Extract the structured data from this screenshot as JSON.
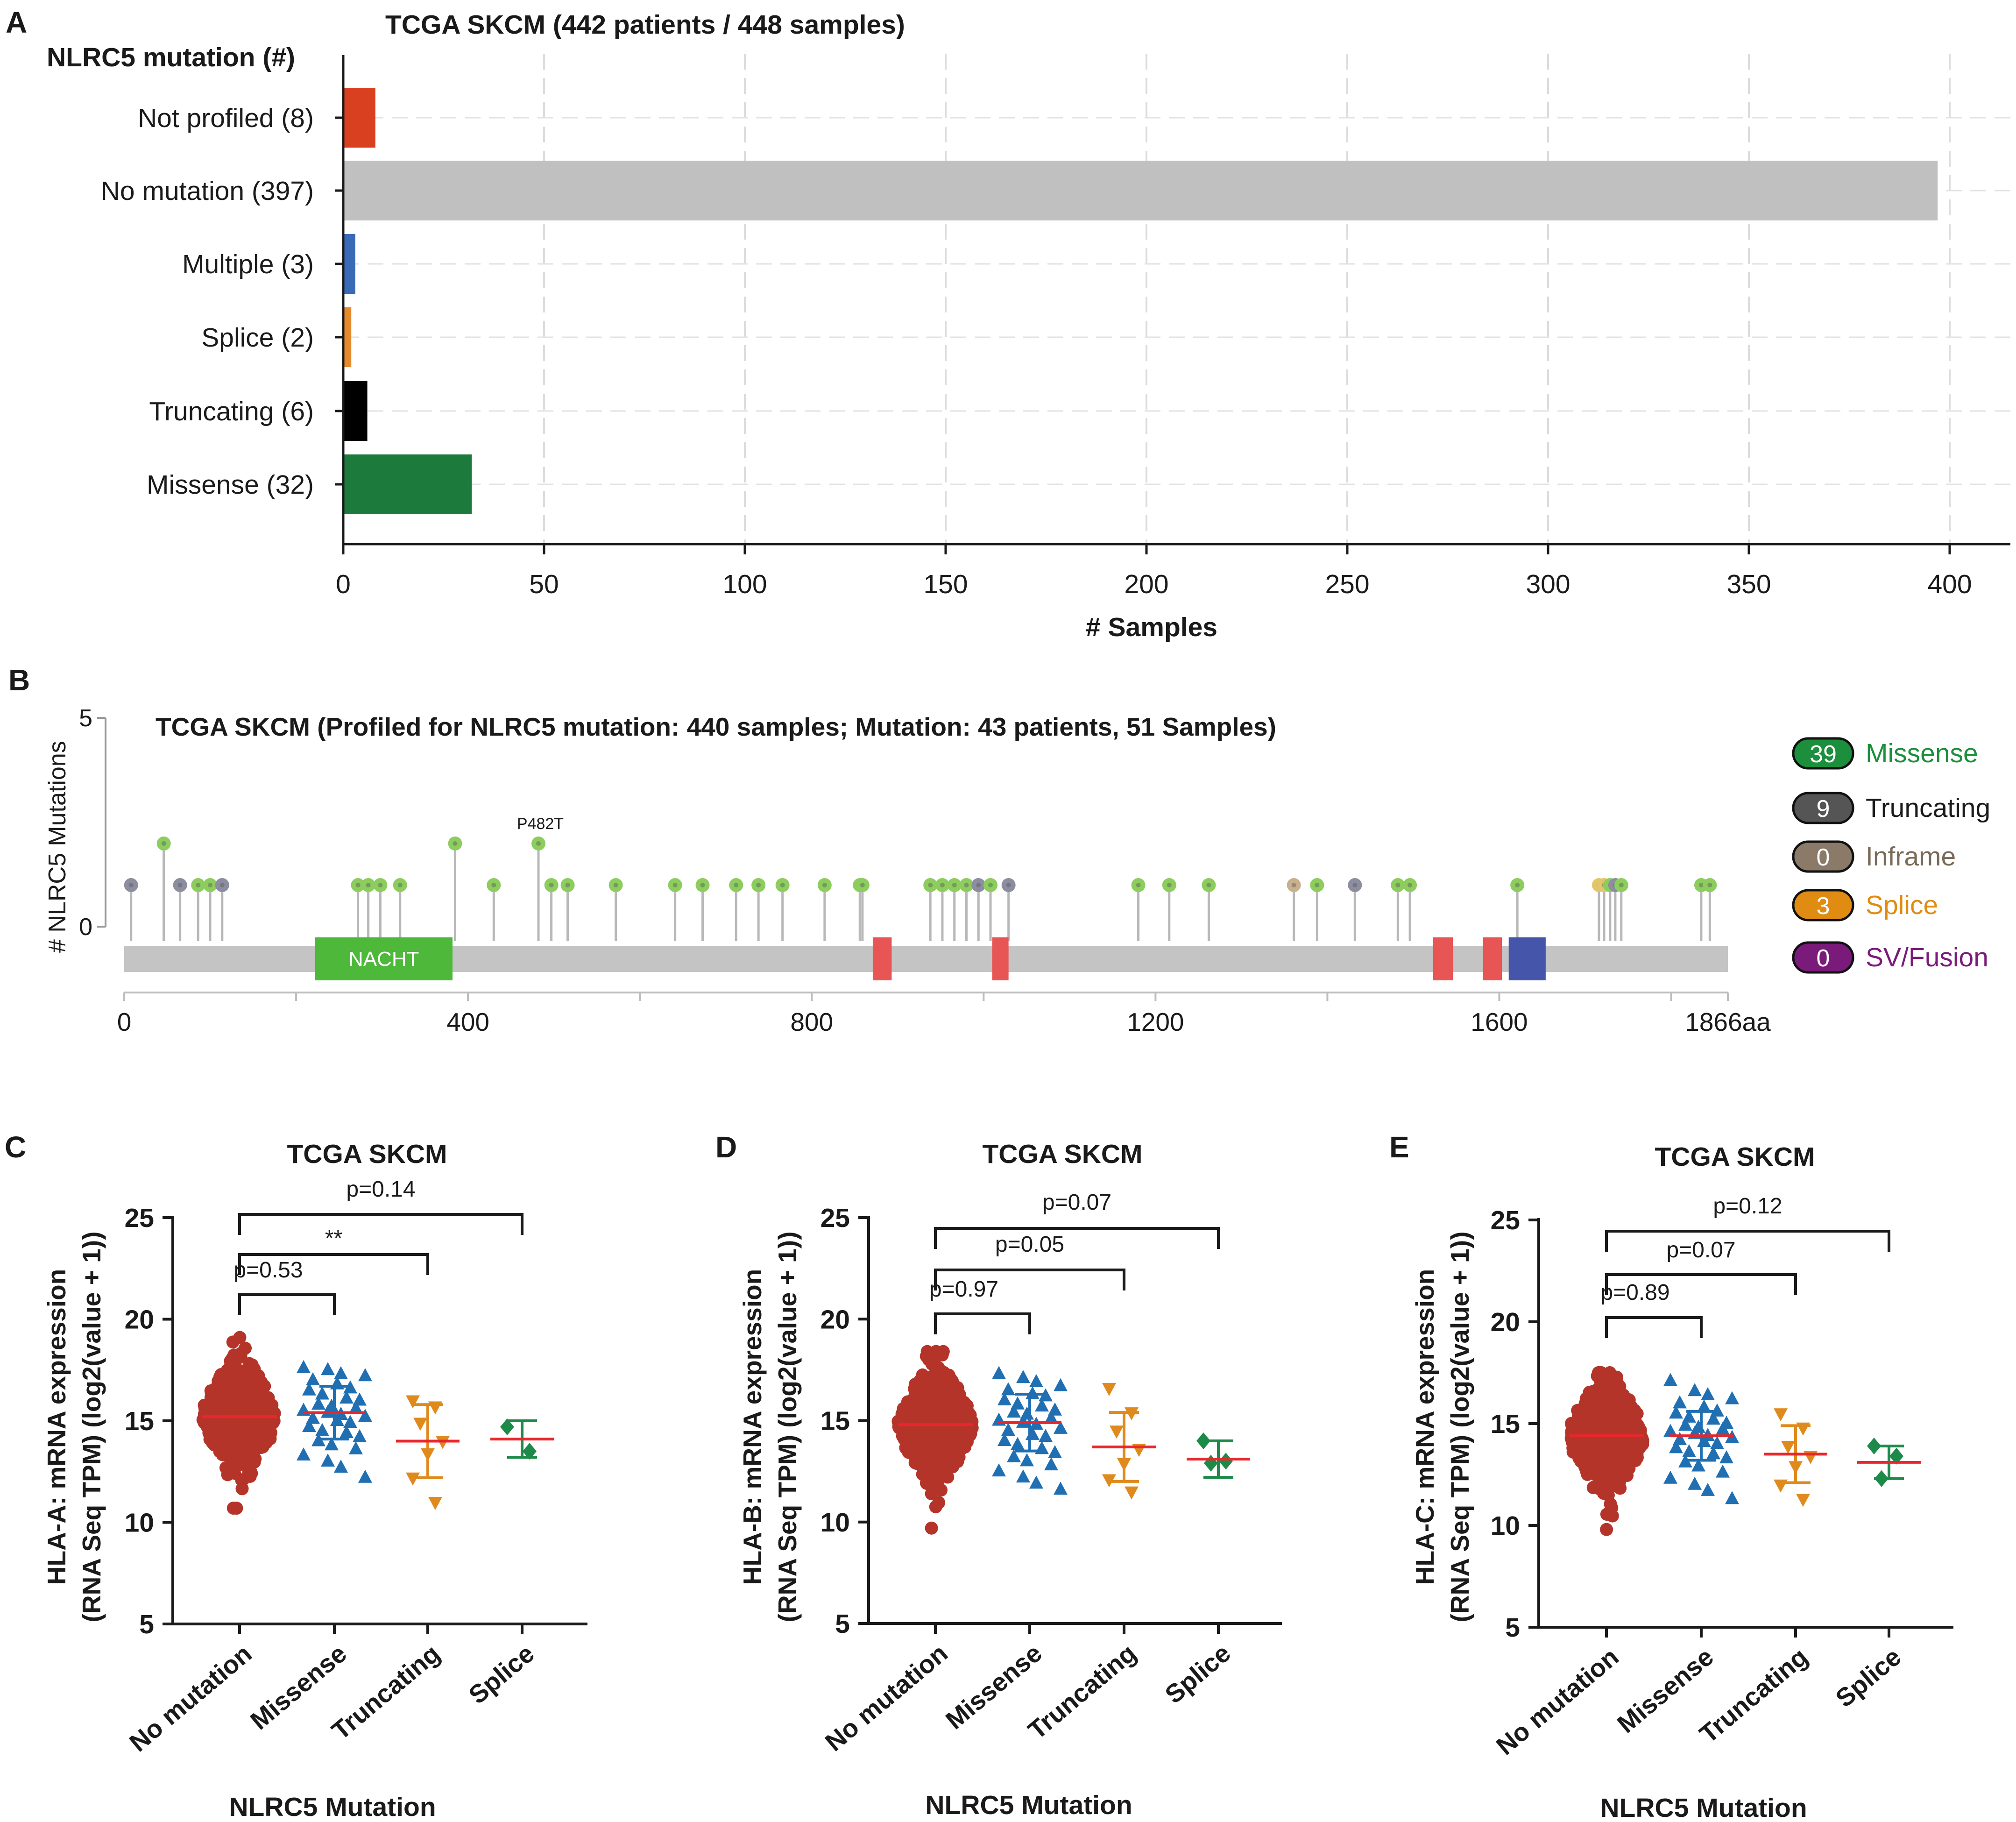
{
  "panelA": {
    "letter": "A",
    "title": "TCGA SKCM (442 patients / 448 samples)",
    "ylabel": "NLRC5 mutation (#)",
    "xlabel": "# Samples",
    "chart_data": {
      "type": "bar",
      "orientation": "horizontal",
      "title": "TCGA SKCM (442 patients / 448 samples)",
      "xlabel": "# Samples",
      "ylabel": "NLRC5 mutation (#)",
      "xlim": [
        0,
        410
      ],
      "xticks": [
        0,
        50,
        100,
        150,
        200,
        250,
        300,
        350,
        400
      ],
      "grid": "dashed-vertical",
      "categories": [
        "Not profiled (8)",
        "No mutation (397)",
        "Multiple (3)",
        "Splice (2)",
        "Truncating (6)",
        "Missense (32)"
      ],
      "values": [
        8,
        397,
        3,
        2,
        6,
        32
      ],
      "colors": [
        "#d9401f",
        "#c0c0c0",
        "#3a6ab5",
        "#e58a2e",
        "#000000",
        "#1b7a3c"
      ]
    }
  },
  "panelB": {
    "letter": "B",
    "title": "TCGA SKCM (Profiled for NLRC5 mutation: 440 samples; Mutation: 43 patients, 51 Samples)",
    "ylabel": "# NLRC5 Mutations",
    "domain_label": "NACHT",
    "hotspot_label": "P482T",
    "chart_data": {
      "type": "lollipop",
      "protein_length": 1866,
      "ylim": [
        0,
        5
      ],
      "yticks": [
        0,
        5
      ],
      "xtick_labels": [
        "0",
        "400",
        "800",
        "1200",
        "1600",
        "1866aa"
      ],
      "xtick_values": [
        0,
        400,
        800,
        1200,
        1600,
        1866
      ],
      "domains": [
        {
          "name": "NACHT",
          "start": 222,
          "end": 382,
          "color": "#4db83a"
        },
        {
          "name": "",
          "start": 871,
          "end": 893,
          "color": "#e85555"
        },
        {
          "name": "",
          "start": 1010,
          "end": 1029,
          "color": "#e85555"
        },
        {
          "name": "",
          "start": 1523,
          "end": 1546,
          "color": "#e85555"
        },
        {
          "name": "",
          "start": 1581,
          "end": 1603,
          "color": "#e85555"
        },
        {
          "name": "",
          "start": 1611,
          "end": 1654,
          "color": "#4455aa"
        }
      ],
      "mutations": [
        {
          "pos": 8,
          "count": 1,
          "type": "truncating"
        },
        {
          "pos": 46,
          "count": 2,
          "type": "missense"
        },
        {
          "pos": 65,
          "count": 1,
          "type": "truncating"
        },
        {
          "pos": 86,
          "count": 1,
          "type": "missense"
        },
        {
          "pos": 100,
          "count": 1,
          "type": "missense"
        },
        {
          "pos": 114,
          "count": 1,
          "type": "truncating"
        },
        {
          "pos": 272,
          "count": 1,
          "type": "missense"
        },
        {
          "pos": 284,
          "count": 1,
          "type": "missense"
        },
        {
          "pos": 298,
          "count": 1,
          "type": "missense"
        },
        {
          "pos": 321,
          "count": 1,
          "type": "missense"
        },
        {
          "pos": 385,
          "count": 2,
          "type": "missense"
        },
        {
          "pos": 430,
          "count": 1,
          "type": "missense"
        },
        {
          "pos": 482,
          "count": 2,
          "type": "missense"
        },
        {
          "pos": 497,
          "count": 1,
          "type": "missense"
        },
        {
          "pos": 516,
          "count": 1,
          "type": "missense"
        },
        {
          "pos": 572,
          "count": 1,
          "type": "missense"
        },
        {
          "pos": 641,
          "count": 1,
          "type": "missense"
        },
        {
          "pos": 673,
          "count": 1,
          "type": "missense"
        },
        {
          "pos": 712,
          "count": 1,
          "type": "missense"
        },
        {
          "pos": 738,
          "count": 1,
          "type": "missense"
        },
        {
          "pos": 766,
          "count": 1,
          "type": "missense"
        },
        {
          "pos": 815,
          "count": 1,
          "type": "missense"
        },
        {
          "pos": 856,
          "count": 1,
          "type": "missense"
        },
        {
          "pos": 859,
          "count": 1,
          "type": "missense"
        },
        {
          "pos": 938,
          "count": 1,
          "type": "missense"
        },
        {
          "pos": 952,
          "count": 1,
          "type": "missense"
        },
        {
          "pos": 966,
          "count": 1,
          "type": "missense"
        },
        {
          "pos": 980,
          "count": 1,
          "type": "missense"
        },
        {
          "pos": 994,
          "count": 1,
          "type": "truncating"
        },
        {
          "pos": 1008,
          "count": 1,
          "type": "missense"
        },
        {
          "pos": 1029,
          "count": 1,
          "type": "truncating"
        },
        {
          "pos": 1180,
          "count": 1,
          "type": "missense"
        },
        {
          "pos": 1216,
          "count": 1,
          "type": "missense"
        },
        {
          "pos": 1262,
          "count": 1,
          "type": "missense"
        },
        {
          "pos": 1361,
          "count": 1,
          "type": "inframe"
        },
        {
          "pos": 1388,
          "count": 1,
          "type": "missense"
        },
        {
          "pos": 1432,
          "count": 1,
          "type": "truncating"
        },
        {
          "pos": 1482,
          "count": 1,
          "type": "missense"
        },
        {
          "pos": 1496,
          "count": 1,
          "type": "missense"
        },
        {
          "pos": 1621,
          "count": 1,
          "type": "missense"
        },
        {
          "pos": 1716,
          "count": 1,
          "type": "splice"
        },
        {
          "pos": 1722,
          "count": 1,
          "type": "splice"
        },
        {
          "pos": 1729,
          "count": 1,
          "type": "missense"
        },
        {
          "pos": 1735,
          "count": 1,
          "type": "truncating"
        },
        {
          "pos": 1742,
          "count": 1,
          "type": "missense"
        },
        {
          "pos": 1835,
          "count": 1,
          "type": "missense"
        },
        {
          "pos": 1845,
          "count": 1,
          "type": "missense"
        }
      ],
      "legend": [
        {
          "count": "39",
          "label": "Missense",
          "badge": "#1b8f3c",
          "text": "#1b8f3c"
        },
        {
          "count": "9",
          "label": "Truncating",
          "badge": "#555555",
          "text": "#1a1a1a"
        },
        {
          "count": "0",
          "label": "Inframe",
          "badge": "#8b7a68",
          "text": "#7a6a58"
        },
        {
          "count": "3",
          "label": "Splice",
          "badge": "#e08c12",
          "text": "#e08c12"
        },
        {
          "count": "0",
          "label": "SV/Fusion",
          "badge": "#7a1a7a",
          "text": "#7a1a7a"
        }
      ],
      "type_colors": {
        "missense": "#8ccd5e",
        "truncating": "#8d8da0",
        "inframe": "#c9b08c",
        "splice": "#e2c66a"
      }
    }
  },
  "scatterPanels": [
    {
      "letter": "C",
      "title": "TCGA SKCM",
      "ylabel1": "HLA-A: mRNA expression",
      "ylabel2": "(RNA Seq TPM) (log2(value + 1))",
      "xlabel": "NLRC5 Mutation",
      "chart_data": {
        "type": "scatter",
        "categories": [
          "No mutation",
          "Missense",
          "Truncating",
          "Splice"
        ],
        "colors": [
          "#b5342a",
          "#1f6fb2",
          "#e08a1e",
          "#1e8a4a"
        ],
        "ylim": [
          5,
          25
        ],
        "yticks": [
          5,
          10,
          15,
          20,
          25
        ],
        "groups": [
          {
            "name": "No mutation",
            "n": 397,
            "mean": 15.2,
            "min": 10.7,
            "max": 19.1
          },
          {
            "name": "Missense",
            "n": 32,
            "mean": 15.4,
            "sd": 1.3,
            "min": 12.2,
            "max": 17.6,
            "points": [
              17.6,
              17.5,
              17.3,
              17.2,
              17.0,
              16.8,
              16.6,
              16.5,
              16.3,
              16.1,
              16.0,
              15.8,
              15.7,
              15.6,
              15.5,
              15.4,
              15.3,
              15.2,
              15.1,
              15.0,
              14.9,
              14.7,
              14.5,
              14.4,
              14.2,
              14.0,
              13.8,
              13.6,
              13.3,
              13.0,
              12.7,
              12.2
            ]
          },
          {
            "name": "Truncating",
            "n": 7,
            "mean": 14.0,
            "sd": 1.8,
            "points": [
              16.0,
              15.7,
              14.9,
              14.0,
              13.4,
              12.2,
              11.0
            ]
          },
          {
            "name": "Splice",
            "n": 2,
            "mean": 14.1,
            "sd": 0.9,
            "points": [
              14.7,
              13.5
            ]
          }
        ],
        "comparisons": [
          {
            "from": "No mutation",
            "to": "Missense",
            "label": "p=0.53"
          },
          {
            "from": "No mutation",
            "to": "Truncating",
            "label": "**"
          },
          {
            "from": "No mutation",
            "to": "Splice",
            "label": "p=0.14"
          }
        ]
      }
    },
    {
      "letter": "D",
      "title": "TCGA SKCM",
      "ylabel1": "HLA-B: mRNA expression",
      "ylabel2": "(RNA Seq TPM) (log2(value + 1))",
      "xlabel": "NLRC5 Mutation",
      "chart_data": {
        "type": "scatter",
        "categories": [
          "No mutation",
          "Missense",
          "Truncating",
          "Splice"
        ],
        "colors": [
          "#b5342a",
          "#1f6fb2",
          "#e08a1e",
          "#1e8a4a"
        ],
        "ylim": [
          5,
          25
        ],
        "yticks": [
          5,
          10,
          15,
          20,
          25
        ],
        "groups": [
          {
            "name": "No mutation",
            "n": 397,
            "mean": 14.8,
            "min": 9.7,
            "max": 18.4
          },
          {
            "name": "Missense",
            "n": 32,
            "mean": 14.9,
            "sd": 1.4,
            "min": 11.6,
            "max": 17.3,
            "points": [
              17.3,
              17.1,
              16.9,
              16.7,
              16.5,
              16.3,
              16.2,
              16.0,
              15.8,
              15.7,
              15.5,
              15.4,
              15.3,
              15.1,
              15.0,
              14.9,
              14.8,
              14.6,
              14.5,
              14.3,
              14.2,
              14.0,
              13.8,
              13.6,
              13.4,
              13.2,
              13.0,
              12.8,
              12.5,
              12.2,
              11.9,
              11.6
            ]
          },
          {
            "name": "Truncating",
            "n": 7,
            "mean": 13.7,
            "sd": 1.7,
            "points": [
              16.6,
              15.4,
              14.5,
              13.6,
              12.9,
              12.1,
              11.5
            ]
          },
          {
            "name": "Splice",
            "n": 3,
            "mean": 13.1,
            "sd": 0.9,
            "points": [
              14.0,
              13.0,
              12.9
            ]
          }
        ],
        "comparisons": [
          {
            "from": "No mutation",
            "to": "Missense",
            "label": "p=0.97"
          },
          {
            "from": "No mutation",
            "to": "Truncating",
            "label": "p=0.05"
          },
          {
            "from": "No mutation",
            "to": "Splice",
            "label": "p=0.07"
          }
        ]
      }
    },
    {
      "letter": "E",
      "title": "TCGA SKCM",
      "ylabel1": "HLA-C: mRNA expression",
      "ylabel2": "(RNA Seq TPM) (log2(value + 1))",
      "xlabel": "NLRC5 Mutation",
      "chart_data": {
        "type": "scatter",
        "categories": [
          "No mutation",
          "Missense",
          "Truncating",
          "Splice"
        ],
        "colors": [
          "#b5342a",
          "#1f6fb2",
          "#e08a1e",
          "#1e8a4a"
        ],
        "ylim": [
          5,
          25
        ],
        "yticks": [
          5,
          10,
          15,
          20,
          25
        ],
        "groups": [
          {
            "name": "No mutation",
            "n": 397,
            "mean": 14.4,
            "min": 9.8,
            "max": 17.5
          },
          {
            "name": "Missense",
            "n": 32,
            "mean": 14.4,
            "sd": 1.2,
            "min": 11.3,
            "max": 17.1,
            "points": [
              17.1,
              16.6,
              16.4,
              16.2,
              16.0,
              15.8,
              15.6,
              15.5,
              15.3,
              15.2,
              15.0,
              14.9,
              14.8,
              14.7,
              14.6,
              14.5,
              14.4,
              14.3,
              14.2,
              14.1,
              14.0,
              13.8,
              13.6,
              13.5,
              13.3,
              13.1,
              12.9,
              12.6,
              12.3,
              12.0,
              11.7,
              11.3
            ]
          },
          {
            "name": "Truncating",
            "n": 7,
            "mean": 13.5,
            "sd": 1.4,
            "points": [
              15.5,
              14.8,
              13.9,
              13.4,
              12.9,
              12.0,
              11.3
            ]
          },
          {
            "name": "Splice",
            "n": 3,
            "mean": 13.1,
            "sd": 0.8,
            "points": [
              13.9,
              13.4,
              12.3
            ]
          }
        ],
        "comparisons": [
          {
            "from": "No mutation",
            "to": "Missense",
            "label": "p=0.89"
          },
          {
            "from": "No mutation",
            "to": "Truncating",
            "label": "p=0.07"
          },
          {
            "from": "No mutation",
            "to": "Splice",
            "label": "p=0.12"
          }
        ]
      }
    }
  ]
}
